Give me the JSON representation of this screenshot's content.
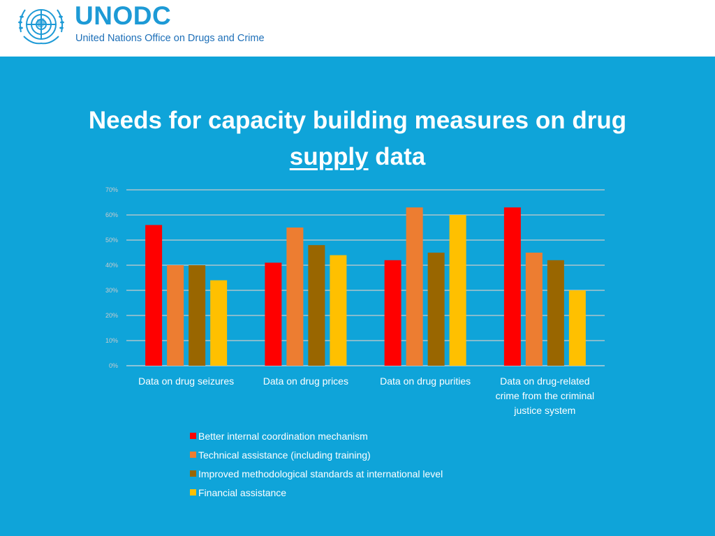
{
  "header": {
    "logo_text": "UNODC",
    "logo_subtitle": "United Nations Office on Drugs and Crime"
  },
  "slide": {
    "title_line1": "Needs for capacity building measures on drug",
    "title_underlined": "supply",
    "title_rest": " data"
  },
  "chart_data": {
    "type": "bar",
    "title": "Needs for capacity building measures on drug supply data",
    "categories": [
      "Data on drug seizures",
      "Data on drug prices",
      "Data on drug purities",
      "Data on drug-related crime from the criminal justice system"
    ],
    "category_lines": [
      [
        "Data on drug seizures"
      ],
      [
        "Data on drug prices"
      ],
      [
        "Data on drug purities"
      ],
      [
        "Data on drug-related",
        "crime from the criminal",
        "justice system"
      ]
    ],
    "series": [
      {
        "name": "Better internal coordination mechanism",
        "color": "#ff0000",
        "values": [
          56,
          41,
          42,
          63
        ]
      },
      {
        "name": "Technical assistance (including training)",
        "color": "#ed7d31",
        "values": [
          40,
          55,
          63,
          45
        ]
      },
      {
        "name": "Improved methodological standards at international level",
        "color": "#996600",
        "values": [
          40,
          48,
          45,
          42
        ]
      },
      {
        "name": "Financial assistance",
        "color": "#ffc000",
        "values": [
          34,
          44,
          60,
          30
        ]
      }
    ],
    "yticks": [
      "0%",
      "10%",
      "20%",
      "30%",
      "40%",
      "50%",
      "60%",
      "70%"
    ],
    "ylim": [
      0,
      70
    ],
    "xlabel": "",
    "ylabel": "",
    "grid": true,
    "legend": "bottom"
  }
}
